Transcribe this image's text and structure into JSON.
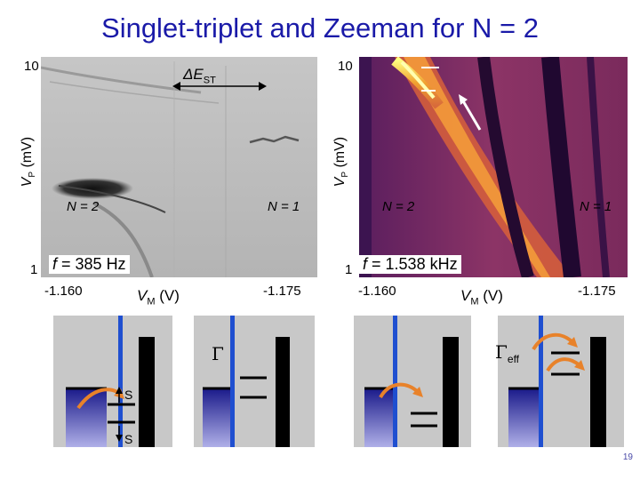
{
  "slide": {
    "title": "Singlet-triplet and Zeeman for N = 2",
    "page_number": "19"
  },
  "left_plot": {
    "y_top": "10",
    "y_bottom": "1",
    "y_label_main": "V",
    "y_label_sub": "P",
    "y_label_unit": " (mV)",
    "delta_label": "ΔE",
    "delta_sub": "ST",
    "n2": "N = 2",
    "n1": "N = 1",
    "freq_prefix": "f",
    "freq_value": " = 385 Hz",
    "x_left": "-1.160",
    "x_label_main": "V",
    "x_label_sub": "M",
    "x_label_unit": " (V)",
    "x_right": "-1.175"
  },
  "right_plot": {
    "y_top": "10",
    "y_bottom": "1",
    "y_label_main": "V",
    "y_label_sub": "P",
    "y_label_unit": " (mV)",
    "n2": "N = 2",
    "n1": "N = 1",
    "freq_prefix": "f",
    "freq_value": " = 1.538 kHz",
    "x_left": "-1.160",
    "x_label_main": "V",
    "x_label_sub": "M",
    "x_label_unit": " (V)",
    "x_right": "-1.175"
  },
  "schematics": {
    "s1_upper": "S",
    "s1_lower": "S",
    "gamma": "Γ",
    "gamma_eff": "Γ",
    "gamma_eff_sub": "eff"
  },
  "colors": {
    "title": "#1a1aa8",
    "barrier_blue": "#1f4fd0",
    "arrow_orange": "#e8822a",
    "reservoir_top": "#1a1a8a",
    "reservoir_bottom": "#b0b0e8"
  }
}
